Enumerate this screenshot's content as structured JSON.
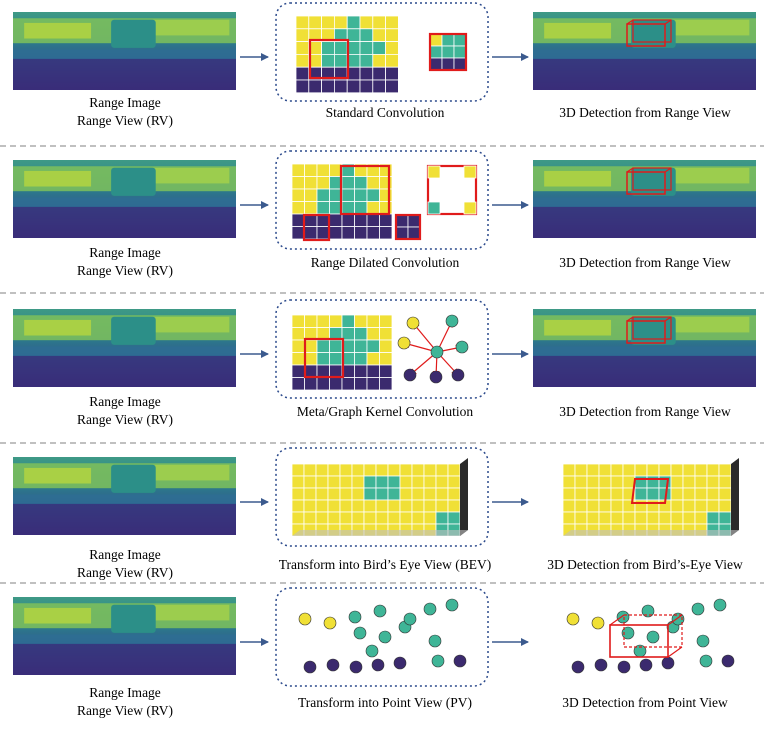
{
  "colors": {
    "yellow": "#f0e036",
    "teal": "#3fb597",
    "purple": "#3b2a6e",
    "red": "#e01b1b",
    "arrow": "#3b5a8e",
    "dashed_panel_border": "#2c4a8c",
    "row_divider": "#9a9a9a",
    "bev_side": "#2a2a2a"
  },
  "rows": [
    {
      "rv_label_line1": "Range Image",
      "rv_label_line2": "Range View (RV)",
      "method_label": "Standard Convolution",
      "output_label": "3D Detection from Range View",
      "method_icon": "standard-conv-grid"
    },
    {
      "rv_label_line1": "Range Image",
      "rv_label_line2": "Range View (RV)",
      "method_label": "Range Dilated Convolution",
      "output_label": "3D Detection from Range View",
      "method_icon": "dilated-conv-grid"
    },
    {
      "rv_label_line1": "Range Image",
      "rv_label_line2": "Range View (RV)",
      "method_label": "Meta/Graph Kernel Convolution",
      "output_label": "3D Detection from Range View",
      "method_icon": "graph-kernel-grid"
    },
    {
      "rv_label_line1": "Range Image",
      "rv_label_line2": "Range View (RV)",
      "method_label": "Transform into Bird’s Eye View (BEV)",
      "output_label": "3D Detection from Bird’s-Eye View",
      "method_icon": "bev-grid"
    },
    {
      "rv_label_line1": "Range Image",
      "rv_label_line2": "Range View (RV)",
      "method_label": "Transform into Point View (PV)",
      "output_label": "3D Detection from Point View",
      "method_icon": "point-view"
    }
  ]
}
